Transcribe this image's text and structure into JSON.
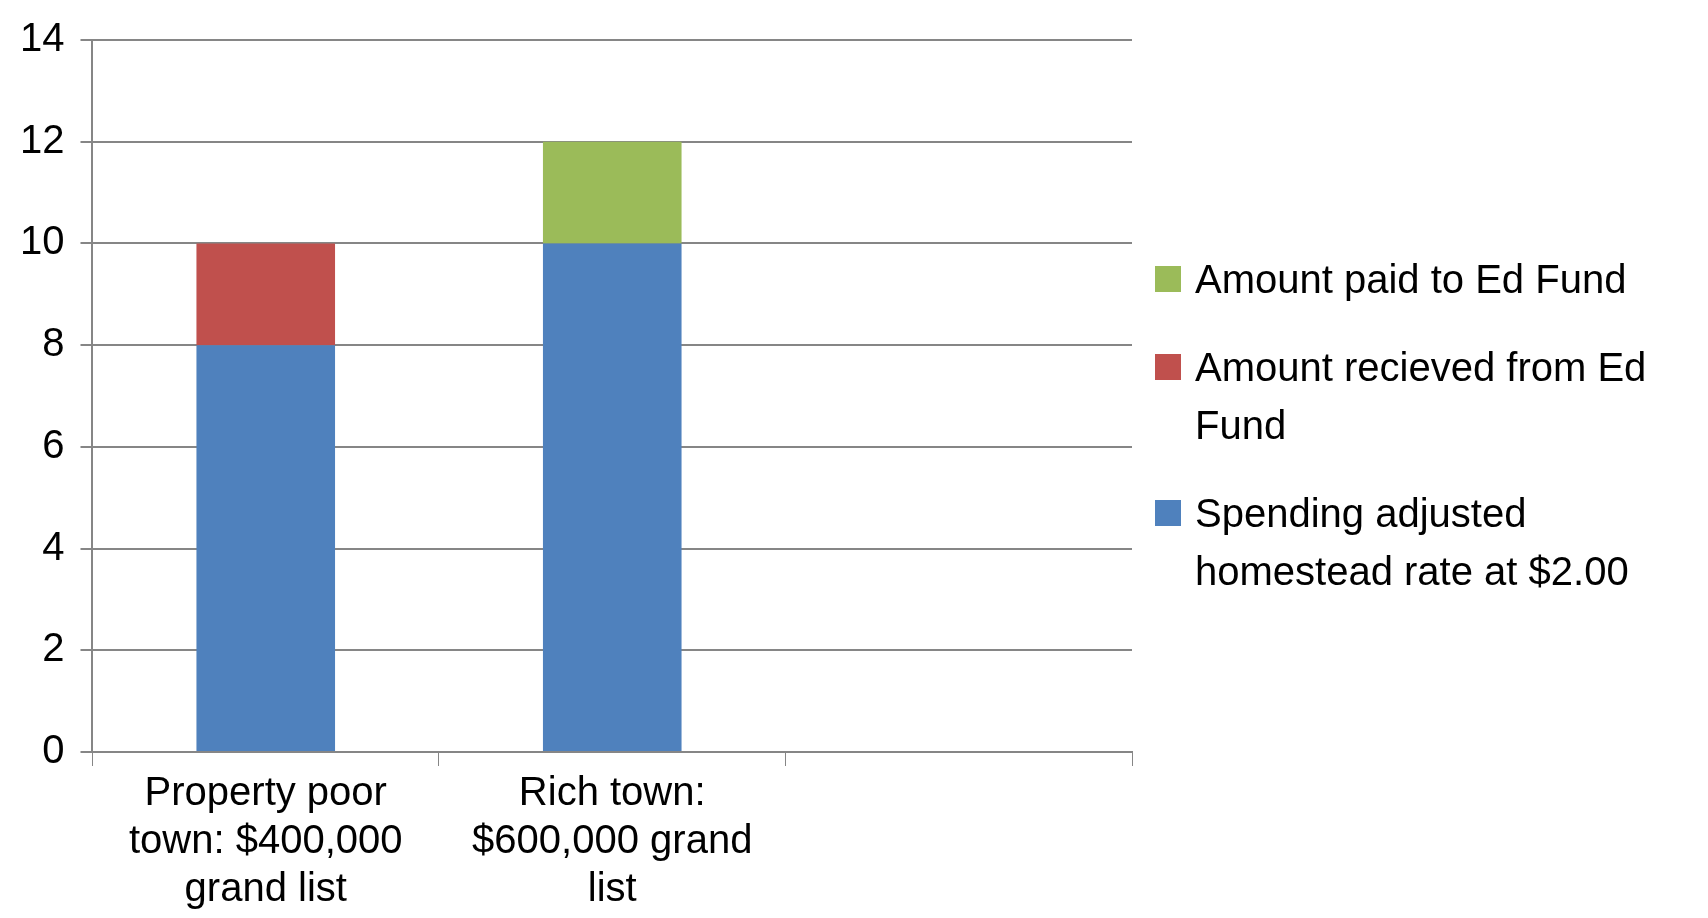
{
  "chart_data": {
    "type": "bar",
    "stacked": true,
    "categories": [
      "Property poor town: $400,000 grand list",
      "Rich town: $600,000 grand list",
      null
    ],
    "series": [
      {
        "name": "Spending adjusted homestead rate at $2.00",
        "color": "#4f81bd",
        "values": [
          8,
          10,
          null
        ]
      },
      {
        "name": "Amount recieved from Ed Fund",
        "color": "#c0504d",
        "values": [
          2,
          null,
          null
        ]
      },
      {
        "name": "Amount paid to Ed Fund",
        "color": "#9bbb59",
        "values": [
          null,
          2,
          null
        ]
      }
    ],
    "ylim": [
      0,
      14
    ],
    "yticks": [
      0,
      2,
      4,
      6,
      8,
      10,
      12,
      14
    ],
    "grid": "y",
    "legend": "right"
  }
}
